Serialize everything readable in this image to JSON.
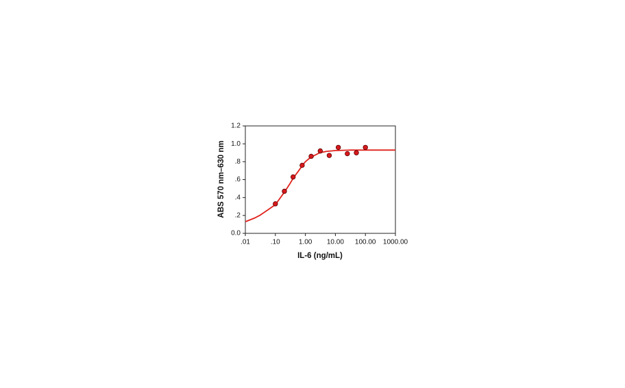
{
  "chart_data": {
    "type": "scatter",
    "x_label": "IL-6 (ng/mL)",
    "y_label": "ABS 570 nm–630 nm",
    "xscale": "log",
    "xlim": [
      0.01,
      1000
    ],
    "xticks": [
      {
        "value": 0.01,
        "label": ".01"
      },
      {
        "value": 0.1,
        "label": ".10"
      },
      {
        "value": 1,
        "label": "1.00"
      },
      {
        "value": 10,
        "label": "10.00"
      },
      {
        "value": 100,
        "label": "100.00"
      },
      {
        "value": 1000,
        "label": "1000.00"
      }
    ],
    "ylim": [
      0,
      1.2
    ],
    "yticks": [
      {
        "value": 0,
        "label": "0.0"
      },
      {
        "value": 0.2,
        "label": ".2"
      },
      {
        "value": 0.4,
        "label": ".4"
      },
      {
        "value": 0.6,
        "label": ".6"
      },
      {
        "value": 0.8,
        "label": ".8"
      },
      {
        "value": 1,
        "label": "1.0"
      },
      {
        "value": 1.2,
        "label": "1.2"
      }
    ],
    "grid": false,
    "series": [
      {
        "type": "scatter",
        "color": "#d7191c",
        "x": [
          0.1,
          0.2,
          0.39,
          0.78,
          1.56,
          3.13,
          6.25,
          12.5,
          25,
          50,
          100
        ],
        "values": [
          0.33,
          0.47,
          0.63,
          0.76,
          0.86,
          0.92,
          0.87,
          0.96,
          0.89,
          0.9,
          0.96
        ]
      },
      {
        "type": "line",
        "color": "#e0201a",
        "x": [
          0.01,
          0.02,
          0.03,
          0.05,
          0.1,
          0.2,
          0.3,
          0.4,
          0.6,
          0.8,
          1,
          1.5,
          2,
          3,
          5,
          10,
          30,
          100,
          1000
        ],
        "values": [
          0.13,
          0.17,
          0.2,
          0.25,
          0.32,
          0.46,
          0.55,
          0.62,
          0.7,
          0.76,
          0.8,
          0.85,
          0.87,
          0.9,
          0.915,
          0.925,
          0.93,
          0.93,
          0.93
        ]
      }
    ]
  }
}
